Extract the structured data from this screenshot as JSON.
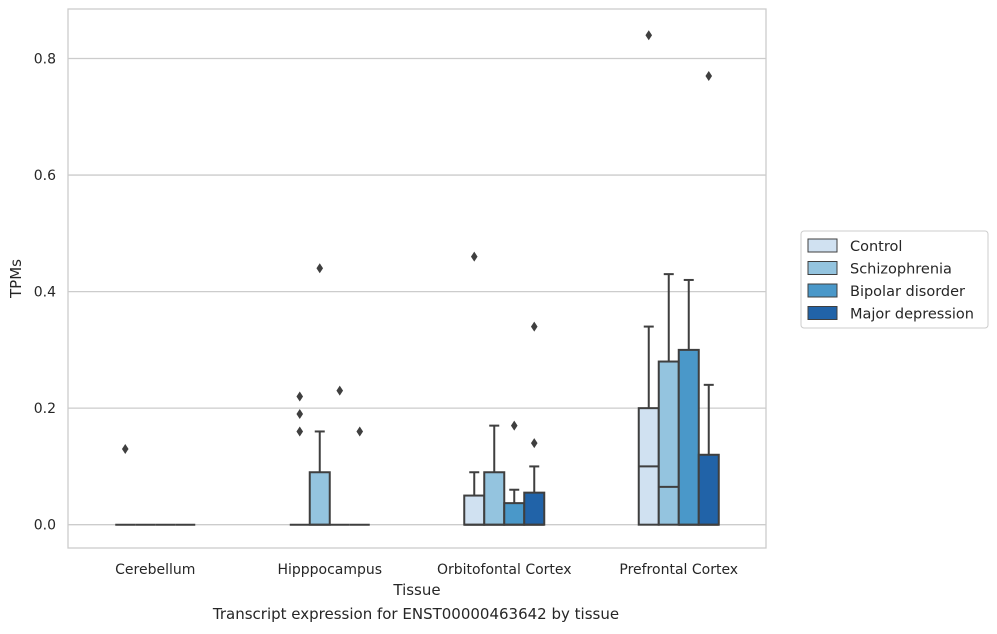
{
  "chart_data": {
    "type": "boxplot",
    "xlabel": "Tissue",
    "ylabel": "TPMs",
    "caption": "Transcript expression for ENST00000463642 by tissue",
    "ylim": [
      -0.04,
      0.885
    ],
    "yticks": [
      0.0,
      0.2,
      0.4,
      0.6,
      0.8
    ],
    "ytick_labels": [
      "0.0",
      "0.2",
      "0.4",
      "0.6",
      "0.8"
    ],
    "grid": "horizontal",
    "legend_position": "right-outside",
    "categories": [
      "Cerebellum",
      "Hipppocampus",
      "Orbitofontal Cortex",
      "Prefrontal Cortex"
    ],
    "series": [
      {
        "name": "Control",
        "color": "#d0e1f1"
      },
      {
        "name": "Schizophrenia",
        "color": "#94c4df"
      },
      {
        "name": "Bipolar disorder",
        "color": "#4a98c9"
      },
      {
        "name": "Major depression",
        "color": "#2163a8"
      }
    ],
    "boxes": [
      {
        "category": 0,
        "series": 0,
        "q1": 0,
        "median": 0,
        "q3": 0,
        "whisker_low": 0,
        "whisker_high": 0,
        "outliers": [
          0.13
        ]
      },
      {
        "category": 0,
        "series": 1,
        "q1": 0,
        "median": 0,
        "q3": 0,
        "whisker_low": 0,
        "whisker_high": 0,
        "outliers": []
      },
      {
        "category": 0,
        "series": 2,
        "q1": 0,
        "median": 0,
        "q3": 0,
        "whisker_low": 0,
        "whisker_high": 0,
        "outliers": []
      },
      {
        "category": 0,
        "series": 3,
        "q1": 0,
        "median": 0,
        "q3": 0,
        "whisker_low": 0,
        "whisker_high": 0,
        "outliers": []
      },
      {
        "category": 1,
        "series": 0,
        "q1": 0,
        "median": 0,
        "q3": 0,
        "whisker_low": 0,
        "whisker_high": 0,
        "outliers": [
          0.16,
          0.19,
          0.22
        ]
      },
      {
        "category": 1,
        "series": 1,
        "q1": 0,
        "median": 0,
        "q3": 0.09,
        "whisker_low": 0,
        "whisker_high": 0.16,
        "outliers": [
          0.44
        ]
      },
      {
        "category": 1,
        "series": 2,
        "q1": 0,
        "median": 0,
        "q3": 0,
        "whisker_low": 0,
        "whisker_high": 0,
        "outliers": [
          0.23
        ]
      },
      {
        "category": 1,
        "series": 3,
        "q1": 0,
        "median": 0,
        "q3": 0,
        "whisker_low": 0,
        "whisker_high": 0,
        "outliers": [
          0.16
        ]
      },
      {
        "category": 2,
        "series": 0,
        "q1": 0,
        "median": 0,
        "q3": 0.05,
        "whisker_low": 0,
        "whisker_high": 0.09,
        "outliers": [
          0.46
        ]
      },
      {
        "category": 2,
        "series": 1,
        "q1": 0,
        "median": 0,
        "q3": 0.09,
        "whisker_low": 0,
        "whisker_high": 0.17,
        "outliers": []
      },
      {
        "category": 2,
        "series": 2,
        "q1": 0,
        "median": 0,
        "q3": 0.037,
        "whisker_low": 0,
        "whisker_high": 0.06,
        "outliers": [
          0.17
        ]
      },
      {
        "category": 2,
        "series": 3,
        "q1": 0,
        "median": 0,
        "q3": 0.055,
        "whisker_low": 0,
        "whisker_high": 0.1,
        "outliers": [
          0.14,
          0.34
        ]
      },
      {
        "category": 3,
        "series": 0,
        "q1": 0,
        "median": 0.1,
        "q3": 0.2,
        "whisker_low": 0,
        "whisker_high": 0.34,
        "outliers": [
          0.84
        ]
      },
      {
        "category": 3,
        "series": 1,
        "q1": 0,
        "median": 0.065,
        "q3": 0.28,
        "whisker_low": 0,
        "whisker_high": 0.43,
        "outliers": []
      },
      {
        "category": 3,
        "series": 2,
        "q1": 0,
        "median": 0,
        "q3": 0.3,
        "whisker_low": 0,
        "whisker_high": 0.42,
        "outliers": []
      },
      {
        "category": 3,
        "series": 3,
        "q1": 0,
        "median": 0,
        "q3": 0.12,
        "whisker_low": 0,
        "whisker_high": 0.24,
        "outliers": [
          0.77
        ]
      }
    ]
  }
}
